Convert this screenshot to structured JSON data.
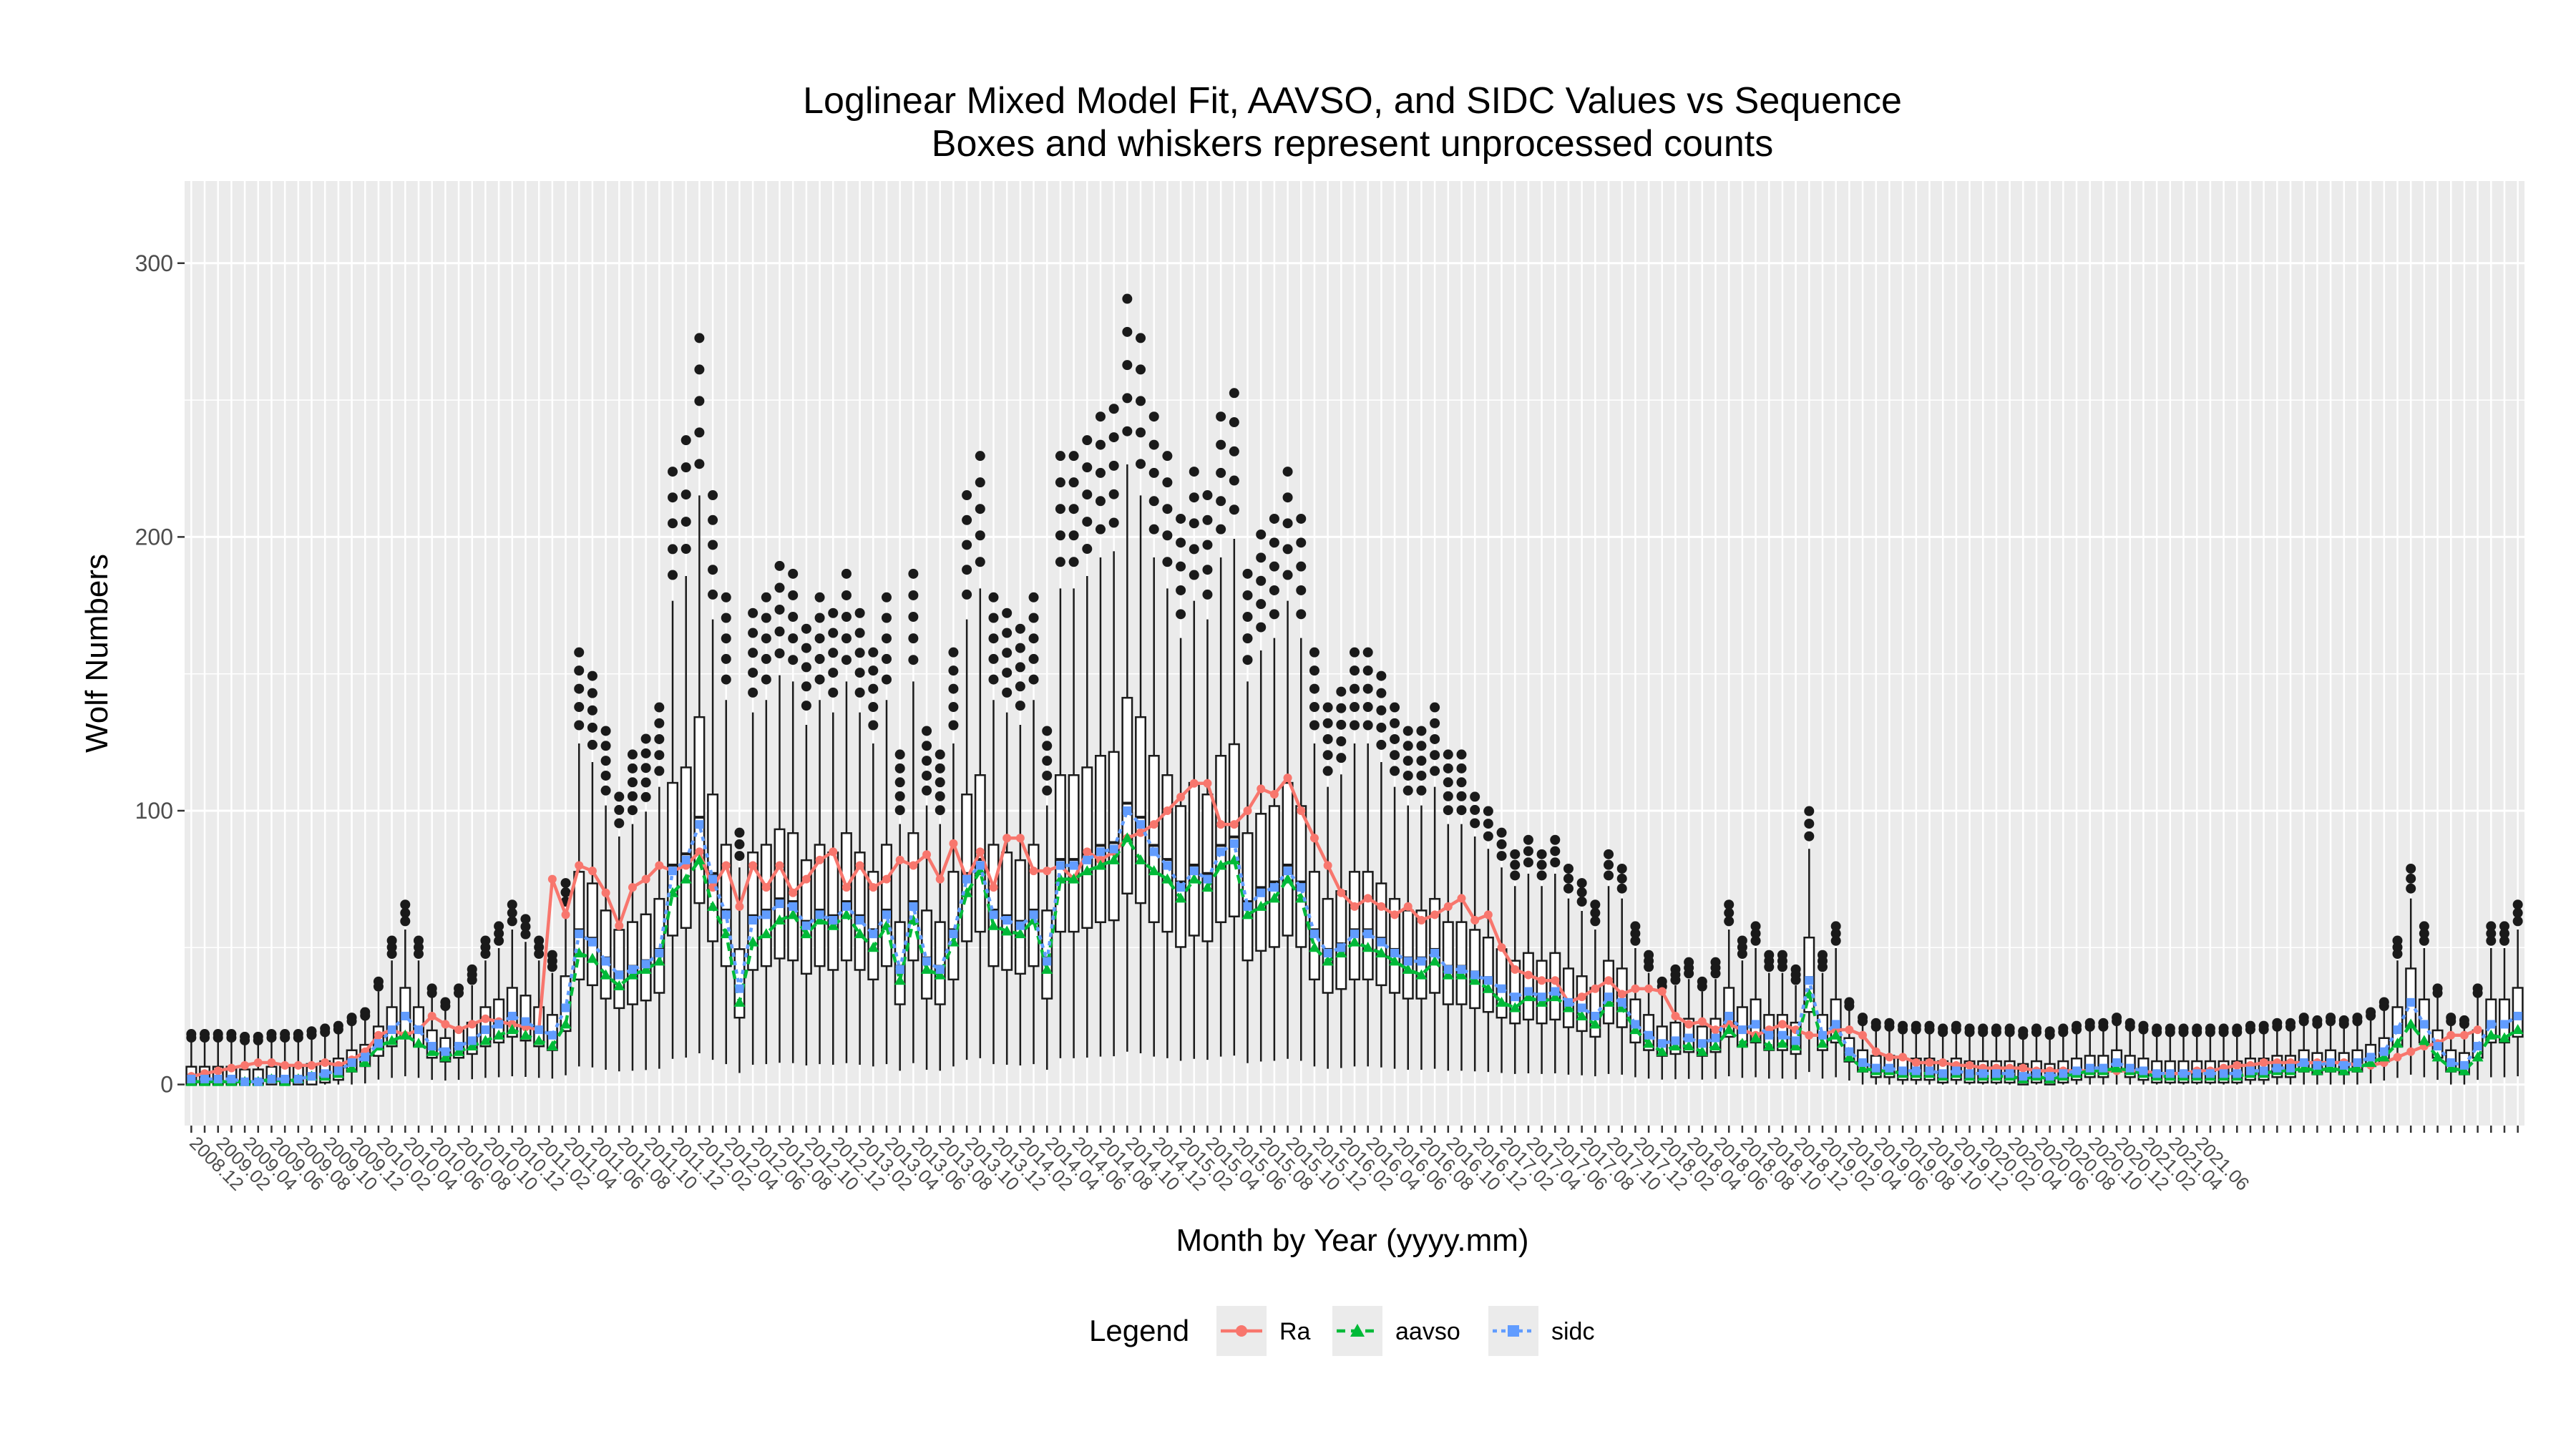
{
  "chart_data": {
    "type": "boxplot_with_lines",
    "title": "Loglinear Mixed Model Fit, AAVSO, and SIDC Values vs Sequence",
    "subtitle": "Boxes and whiskers represent unprocessed counts",
    "xlabel": "Month by Year (yyyy.mm)",
    "ylabel": "Wolf Numbers",
    "ylim": [
      -15,
      330
    ],
    "yticks": [
      0,
      100,
      200,
      300
    ],
    "grid": true,
    "legend": {
      "title": "Legend",
      "position": "bottom",
      "entries": [
        "Ra",
        "aavso",
        "sidc"
      ]
    },
    "start_month": "2008.12",
    "end_month": "2021.06",
    "x_tick_labels": [
      "2008.12",
      "2009.02",
      "2009.04",
      "2009.06",
      "2009.08",
      "2009.10",
      "2009.12",
      "2010.02",
      "2010.04",
      "2010.06",
      "2010.08",
      "2010.10",
      "2010.12",
      "2011.02",
      "2011.04",
      "2011.06",
      "2011.08",
      "2011.10",
      "2011.12",
      "2012.02",
      "2012.04",
      "2012.06",
      "2012.08",
      "2012.10",
      "2012.12",
      "2013.02",
      "2013.04",
      "2013.06",
      "2013.08",
      "2013.10",
      "2013.12",
      "2014.02",
      "2014.04",
      "2014.06",
      "2014.08",
      "2014.10",
      "2014.12",
      "2015.02",
      "2015.04",
      "2015.06",
      "2015.08",
      "2015.10",
      "2015.12",
      "2016.02",
      "2016.04",
      "2016.06",
      "2016.08",
      "2016.10",
      "2016.12",
      "2017.02",
      "2017.04",
      "2017.06",
      "2017.08",
      "2017.10",
      "2017.12",
      "2018.02",
      "2018.04",
      "2018.06",
      "2018.08",
      "2018.10",
      "2018.12",
      "2019.02",
      "2019.04",
      "2019.06",
      "2019.08",
      "2019.10",
      "2019.12",
      "2020.02",
      "2020.04",
      "2020.06",
      "2020.08",
      "2020.10",
      "2020.12",
      "2021.02",
      "2021.04",
      "2021.06"
    ],
    "series_colors": {
      "Ra": "#F8766D",
      "aavso": "#00BA38",
      "sidc": "#619CFF"
    },
    "series": [
      {
        "name": "Ra",
        "values": [
          3,
          4,
          5,
          6,
          7,
          8,
          8,
          7,
          7,
          7,
          8,
          7,
          9,
          12,
          18,
          20,
          18,
          20,
          25,
          22,
          20,
          22,
          24,
          23,
          22,
          21,
          20,
          75,
          62,
          80,
          78,
          70,
          58,
          72,
          75,
          80,
          78,
          80,
          85,
          72,
          80,
          65,
          80,
          72,
          80,
          70,
          75,
          82,
          85,
          72,
          80,
          72,
          75,
          82,
          80,
          84,
          75,
          88,
          75,
          85,
          72,
          90,
          90,
          78,
          78,
          80,
          75,
          85,
          82,
          85,
          90,
          92,
          95,
          100,
          105,
          110,
          110,
          95,
          95,
          100,
          108,
          106,
          112,
          100,
          90,
          80,
          70,
          65,
          68,
          65,
          62,
          65,
          60,
          62,
          65,
          68,
          60,
          62,
          50,
          42,
          40,
          38,
          38,
          30,
          32,
          35,
          38,
          33,
          35,
          35,
          34,
          25,
          22,
          23,
          20,
          22,
          20,
          18,
          20,
          22,
          20,
          18,
          18,
          20,
          20,
          18,
          12,
          10,
          10,
          8,
          8,
          8,
          7,
          7,
          6,
          6,
          6,
          6,
          5,
          5,
          5,
          5,
          5,
          5,
          5,
          5,
          5,
          4,
          4,
          4,
          5,
          5,
          6,
          7,
          7,
          8,
          8,
          8,
          8,
          8,
          8,
          8,
          7,
          7,
          8,
          10,
          12,
          14,
          15,
          18,
          18,
          20
        ],
        "display_note": ""
      },
      {
        "name": "aavso",
        "values": [
          1,
          1,
          1,
          1,
          1,
          1,
          2,
          1,
          2,
          3,
          3,
          4,
          6,
          8,
          14,
          16,
          18,
          15,
          12,
          10,
          12,
          14,
          16,
          18,
          20,
          18,
          16,
          14,
          22,
          48,
          46,
          40,
          36,
          40,
          42,
          45,
          70,
          75,
          82,
          65,
          55,
          30,
          52,
          55,
          60,
          62,
          55,
          60,
          58,
          62,
          55,
          50,
          58,
          38,
          60,
          42,
          40,
          52,
          70,
          78,
          58,
          56,
          55,
          60,
          42,
          75,
          75,
          78,
          80,
          82,
          90,
          82,
          78,
          75,
          68,
          75,
          72,
          80,
          82,
          62,
          65,
          68,
          75,
          68,
          50,
          45,
          48,
          52,
          50,
          48,
          45,
          42,
          40,
          45,
          40,
          40,
          38,
          35,
          30,
          28,
          32,
          30,
          32,
          28,
          25,
          22,
          30,
          28,
          20,
          15,
          12,
          14,
          14,
          12,
          14,
          20,
          15,
          17,
          14,
          15,
          14,
          33,
          15,
          18,
          10,
          6,
          5,
          5,
          4,
          4,
          4,
          3,
          4,
          3,
          3,
          3,
          3,
          2,
          3,
          2,
          3,
          4,
          5,
          5,
          6,
          5,
          4,
          3,
          3,
          3,
          3,
          3,
          3,
          3,
          4,
          4,
          5,
          5,
          6,
          5,
          6,
          5,
          6,
          8,
          10,
          15,
          22,
          16,
          10,
          6,
          5,
          10,
          18,
          17,
          20
        ],
        "display_note": ""
      },
      {
        "name": "sidc",
        "values": [
          2,
          2,
          2,
          2,
          1,
          1,
          2,
          2,
          2,
          3,
          4,
          5,
          8,
          10,
          15,
          20,
          25,
          20,
          14,
          12,
          14,
          16,
          20,
          22,
          25,
          23,
          20,
          18,
          28,
          55,
          52,
          45,
          40,
          42,
          44,
          48,
          78,
          82,
          95,
          75,
          62,
          35,
          60,
          62,
          66,
          65,
          58,
          62,
          60,
          65,
          60,
          55,
          62,
          42,
          65,
          45,
          42,
          55,
          75,
          80,
          62,
          60,
          58,
          62,
          45,
          80,
          80,
          82,
          85,
          86,
          100,
          95,
          85,
          80,
          72,
          78,
          75,
          85,
          88,
          65,
          70,
          72,
          78,
          72,
          55,
          48,
          50,
          55,
          55,
          52,
          48,
          45,
          45,
          48,
          42,
          42,
          40,
          38,
          35,
          32,
          34,
          32,
          34,
          30,
          28,
          25,
          32,
          30,
          22,
          18,
          15,
          16,
          17,
          15,
          17,
          25,
          20,
          22,
          18,
          18,
          16,
          38,
          18,
          22,
          12,
          8,
          6,
          6,
          5,
          5,
          5,
          4,
          5,
          4,
          4,
          4,
          4,
          3,
          4,
          3,
          4,
          5,
          6,
          6,
          8,
          6,
          5,
          4,
          4,
          4,
          4,
          4,
          4,
          4,
          5,
          5,
          6,
          6,
          8,
          7,
          8,
          7,
          8,
          10,
          12,
          20,
          30,
          22,
          14,
          8,
          7,
          14,
          22,
          22,
          25
        ],
        "display_note": ""
      }
    ]
  }
}
